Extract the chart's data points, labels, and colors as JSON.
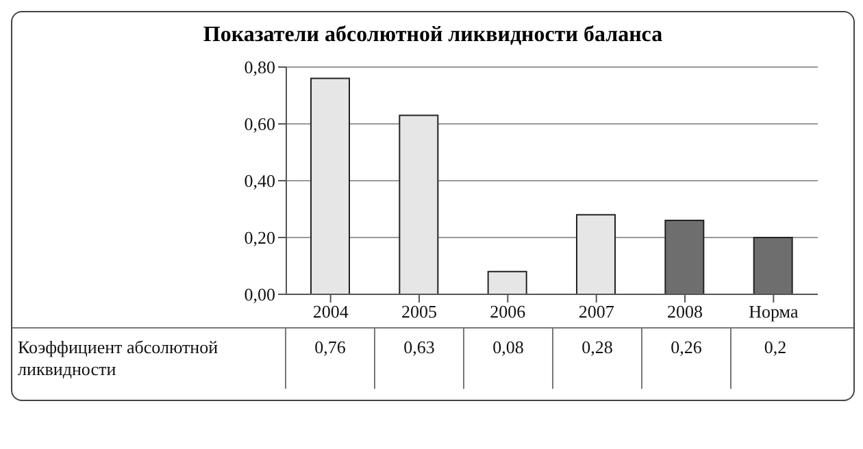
{
  "chart_data": {
    "type": "bar",
    "title": "Показатели абсолютной ликвидности баланса",
    "categories": [
      "2004",
      "2005",
      "2006",
      "2007",
      "2008",
      "Норма"
    ],
    "series": [
      {
        "name": "Коэффициент абсолютной ликвидности",
        "values": [
          0.76,
          0.63,
          0.08,
          0.28,
          0.26,
          0.2
        ],
        "colors": [
          "#e6e6e6",
          "#e6e6e6",
          "#e6e6e6",
          "#e6e6e6",
          "#6e6e6e",
          "#6e6e6e"
        ],
        "value_labels": [
          "0,76",
          "0,63",
          "0,08",
          "0,28",
          "0,26",
          "0,2"
        ]
      }
    ],
    "ylim": [
      0,
      0.8
    ],
    "yticks": [
      {
        "value": 0,
        "label": "0,00"
      },
      {
        "value": 0.2,
        "label": "0,20"
      },
      {
        "value": 0.4,
        "label": "0,40"
      },
      {
        "value": 0.6,
        "label": "0,60"
      },
      {
        "value": 0.8,
        "label": "0,80"
      }
    ],
    "grid": "y"
  }
}
